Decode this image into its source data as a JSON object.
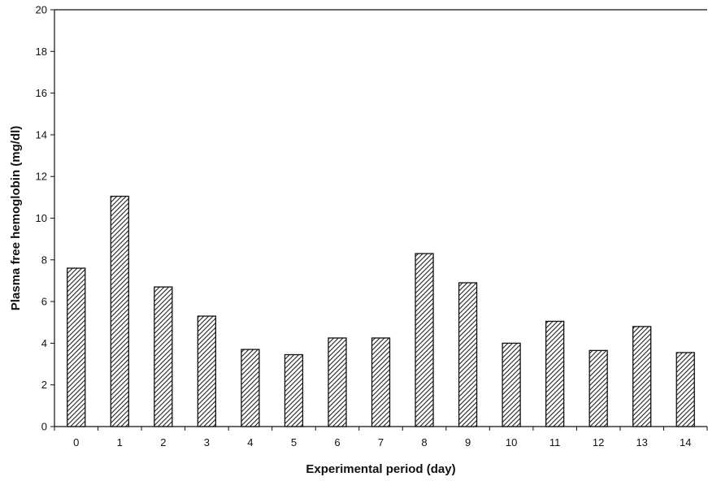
{
  "chart_data": {
    "type": "bar",
    "xlabel": "Experimental period (day)",
    "ylabel": "Plasma free hemoglobin (mg/dl)",
    "categories": [
      "0",
      "1",
      "2",
      "3",
      "4",
      "5",
      "6",
      "7",
      "8",
      "9",
      "10",
      "11",
      "12",
      "13",
      "14"
    ],
    "values": [
      7.6,
      11.05,
      6.7,
      5.3,
      3.7,
      3.45,
      4.25,
      4.25,
      8.3,
      6.9,
      4.0,
      5.05,
      3.65,
      4.8,
      3.55
    ],
    "ylim": [
      0,
      20
    ],
    "yticks": [
      0,
      2,
      4,
      6,
      8,
      10,
      12,
      14,
      16,
      18,
      20
    ],
    "grid": false,
    "bar_fill": "hatched"
  }
}
